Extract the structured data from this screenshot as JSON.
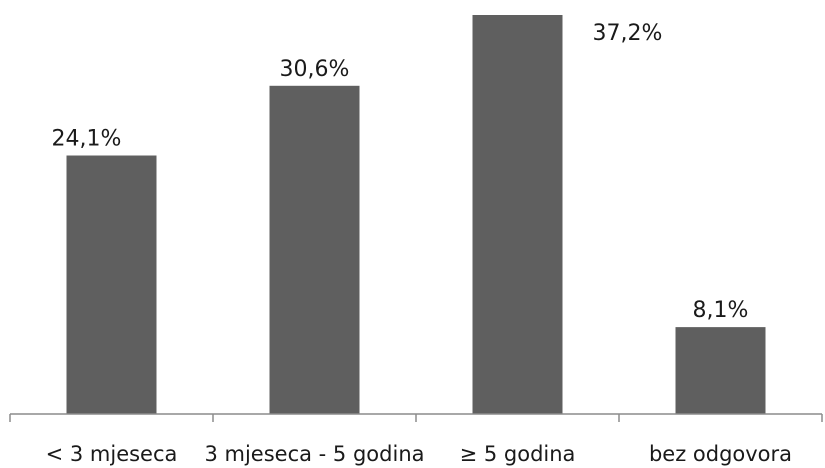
{
  "chart_data": {
    "type": "bar",
    "categories": [
      "< 3 mjeseca",
      "3 mjeseca - 5 godina",
      "≥ 5 godina",
      "bez odgovora"
    ],
    "values": [
      24.1,
      30.6,
      37.2,
      8.1
    ],
    "data_labels": [
      "24,1%",
      "30,6%",
      "37,2%",
      "8,1%"
    ],
    "ylim": [
      0,
      37.2
    ],
    "grid": false,
    "legend": "none",
    "bar_color": "#5f5f5f",
    "axis_color": "#8c8c8c"
  }
}
